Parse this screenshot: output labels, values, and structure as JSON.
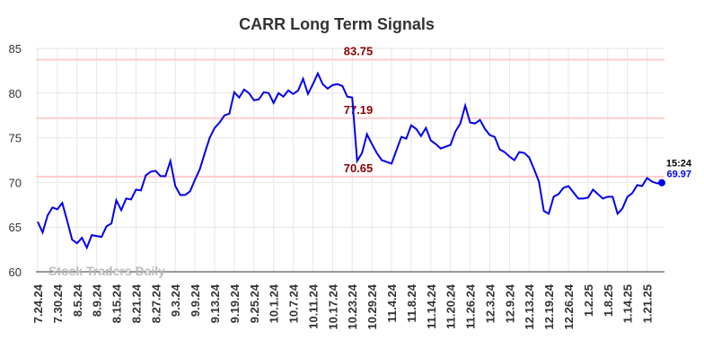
{
  "chart_data": {
    "type": "line",
    "title": "CARR Long Term Signals",
    "categories": [
      "7.24.24",
      null,
      null,
      null,
      "7.30.24",
      null,
      null,
      null,
      "8.5.24",
      null,
      null,
      null,
      "8.9.24",
      null,
      null,
      null,
      "8.15.24",
      null,
      null,
      null,
      "8.21.24",
      null,
      null,
      null,
      "8.27.24",
      null,
      null,
      null,
      "9.3.24",
      null,
      null,
      null,
      "9.9.24",
      null,
      null,
      null,
      "9.13.24",
      null,
      null,
      null,
      "9.19.24",
      null,
      null,
      null,
      "9.25.24",
      null,
      null,
      null,
      "10.1.24",
      null,
      null,
      null,
      "10.7.24",
      null,
      null,
      null,
      "10.11.24",
      null,
      null,
      null,
      "10.17.24",
      null,
      null,
      null,
      "10.23.24",
      null,
      null,
      null,
      "10.29.24",
      null,
      null,
      null,
      "11.4.24",
      null,
      null,
      null,
      "11.8.24",
      null,
      null,
      null,
      "11.14.24",
      null,
      null,
      null,
      "11.20.24",
      null,
      null,
      null,
      "11.26.24",
      null,
      null,
      null,
      "12.3.24",
      null,
      null,
      null,
      "12.9.24",
      null,
      null,
      null,
      "12.13.24",
      null,
      null,
      null,
      "12.19.24",
      null,
      null,
      null,
      "12.26.24",
      null,
      null,
      null,
      "1.2.25",
      null,
      null,
      null,
      "1.8.25",
      null,
      null,
      null,
      "1.14.25",
      null,
      null,
      null,
      "1.21.25",
      null,
      null,
      null
    ],
    "series": [
      {
        "color": "#0000ee",
        "values": [
          65.6,
          64.4,
          66.3,
          67.2,
          67.0,
          67.7,
          65.7,
          63.6,
          63.2,
          63.8,
          62.7,
          64.1,
          64.0,
          63.9,
          65.1,
          65.4,
          68.0,
          66.9,
          68.2,
          68.1,
          69.2,
          69.1,
          70.8,
          71.2,
          71.3,
          70.7,
          70.7,
          72.4,
          69.6,
          68.6,
          68.6,
          69.0,
          70.3,
          71.5,
          73.3,
          75.0,
          76.1,
          76.7,
          77.5,
          77.7,
          80.1,
          79.5,
          80.4,
          80.0,
          79.2,
          79.3,
          80.1,
          80.0,
          78.9,
          80.0,
          79.6,
          80.3,
          79.9,
          80.3,
          81.6,
          79.9,
          81.0,
          82.2,
          81.0,
          80.5,
          80.9,
          81.0,
          80.8,
          79.6,
          79.5,
          72.4,
          73.3,
          75.4,
          74.3,
          73.3,
          72.5,
          72.3,
          72.1,
          73.6,
          75.1,
          74.9,
          76.4,
          76.0,
          75.2,
          76.1,
          74.7,
          74.3,
          73.8,
          74.0,
          74.2,
          75.7,
          76.6,
          78.6,
          76.7,
          76.6,
          77.0,
          76.0,
          75.3,
          75.1,
          73.7,
          73.4,
          72.9,
          72.5,
          73.4,
          73.3,
          72.8,
          71.5,
          70.1,
          66.8,
          66.5,
          68.4,
          68.7,
          69.4,
          69.6,
          68.9,
          68.2,
          68.2,
          68.3,
          69.2,
          68.7,
          68.2,
          68.4,
          68.4,
          66.5,
          67.1,
          68.4,
          68.8,
          69.7,
          69.6,
          70.5,
          70.1,
          69.9,
          69.97
        ]
      }
    ],
    "hlines": [
      83.75,
      77.19,
      70.65
    ],
    "hline_color": "#ffcccc",
    "hline_label_color": "#8b0000",
    "last_time": "15:24",
    "watermark": "Stock Traders Daily",
    "ylim": [
      60,
      85
    ],
    "yticks": [
      60,
      65,
      70,
      75,
      80,
      85
    ],
    "grid": true
  }
}
